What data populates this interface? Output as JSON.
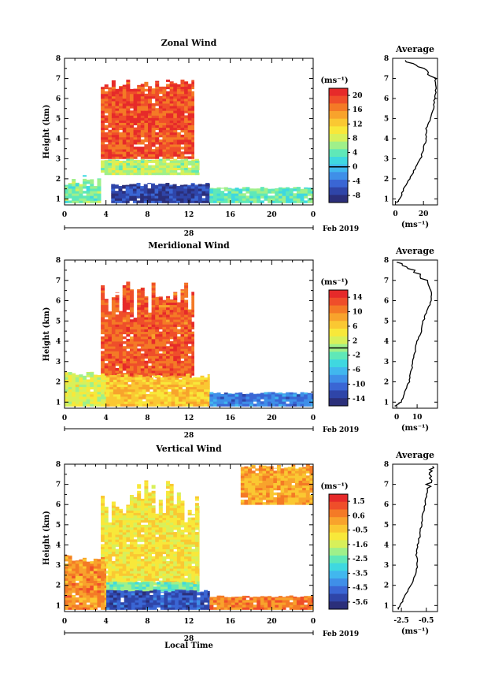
{
  "date_label": "Feb 2019",
  "x_axis_title": "Local Time",
  "panels": [
    {
      "title": "Zonal Wind",
      "ylabel": "Height (km)",
      "unit": "(ms⁻¹)",
      "day_label": "28",
      "avg_title": "Average",
      "avg_unit": "(ms⁻¹)",
      "colorbar_ticks": [
        "20",
        "16",
        "12",
        "8",
        "4",
        "0",
        "-4",
        "-8"
      ],
      "avg_x_ticks": [
        "0",
        "20"
      ]
    },
    {
      "title": "Meridional Wind",
      "ylabel": "Height (km)",
      "unit": "(ms⁻¹)",
      "day_label": "28",
      "avg_title": "Average",
      "avg_unit": "(ms⁻¹)",
      "colorbar_ticks": [
        "14",
        "10",
        "6",
        "2",
        "-2",
        "-6",
        "-10",
        "-14"
      ],
      "avg_x_ticks": [
        "0",
        "10"
      ]
    },
    {
      "title": "Vertical Wind",
      "ylabel": "Height (km)",
      "unit": "(ms⁻¹)",
      "day_label": "28",
      "avg_title": "Average",
      "avg_unit": "(ms⁻¹)",
      "colorbar_ticks": [
        "1.5",
        "0.6",
        "-0.5",
        "-1.6",
        "-2.5",
        "-3.5",
        "-4.5",
        "-5.6"
      ],
      "avg_x_ticks": [
        "-2.5",
        "-0.5"
      ]
    }
  ],
  "chart_data": [
    {
      "type": "heatmap",
      "title": "Zonal Wind",
      "xlabel": "",
      "ylabel": "Height (km)",
      "x_ticks": [
        "0",
        "4",
        "8",
        "12",
        "16",
        "20",
        "0"
      ],
      "y_ticks": [
        "1",
        "2",
        "3",
        "4",
        "5",
        "6",
        "7",
        "8"
      ],
      "xlim": [
        0,
        24
      ],
      "ylim": [
        0.7,
        8
      ],
      "colorbar_range": [
        -8,
        22
      ],
      "regions": [
        {
          "x": [
            0,
            3.5
          ],
          "y": [
            0.8,
            2.2
          ],
          "value": 6
        },
        {
          "x": [
            3.5,
            12.5
          ],
          "y": [
            3.0,
            7.0
          ],
          "value": 20
        },
        {
          "x": [
            3.5,
            13
          ],
          "y": [
            2.2,
            3.0
          ],
          "value": 8
        },
        {
          "x": [
            4.5,
            14
          ],
          "y": [
            0.8,
            1.8
          ],
          "value": -6
        },
        {
          "x": [
            14,
            24
          ],
          "y": [
            0.8,
            1.6
          ],
          "value": 5
        }
      ],
      "average_profile": {
        "x_label": "(ms⁻¹)",
        "x_ticks": [
          "0",
          "20"
        ],
        "xlim": [
          -2,
          30
        ],
        "height": [
          0.8,
          1.0,
          1.5,
          2.0,
          2.5,
          3.0,
          3.5,
          4.0,
          4.5,
          5.0,
          5.5,
          6.0,
          6.5,
          7.0,
          7.5,
          7.9
        ],
        "value": [
          1,
          3,
          6,
          10,
          14,
          18,
          20,
          22,
          22,
          25,
          27,
          28,
          29,
          28,
          20,
          7
        ]
      }
    },
    {
      "type": "heatmap",
      "title": "Meridional Wind",
      "xlabel": "",
      "ylabel": "Height (km)",
      "x_ticks": [
        "0",
        "4",
        "8",
        "12",
        "16",
        "20",
        "0"
      ],
      "y_ticks": [
        "1",
        "2",
        "3",
        "4",
        "5",
        "6",
        "7",
        "8"
      ],
      "xlim": [
        0,
        24
      ],
      "ylim": [
        0.7,
        8
      ],
      "colorbar_range": [
        -16,
        16
      ],
      "regions": [
        {
          "x": [
            3.5,
            12.5
          ],
          "y": [
            2.2,
            7.0
          ],
          "value": 13
        },
        {
          "x": [
            0,
            4
          ],
          "y": [
            0.8,
            2.5
          ],
          "value": 3
        },
        {
          "x": [
            4,
            14
          ],
          "y": [
            0.8,
            2.4
          ],
          "value": 7
        },
        {
          "x": [
            14,
            24
          ],
          "y": [
            0.8,
            1.5
          ],
          "value": -10
        }
      ],
      "average_profile": {
        "x_label": "(ms⁻¹)",
        "x_ticks": [
          "0",
          "10"
        ],
        "xlim": [
          -2,
          20
        ],
        "height": [
          0.8,
          1.0,
          1.5,
          2.0,
          2.5,
          3.0,
          3.5,
          4.0,
          4.5,
          5.0,
          5.5,
          6.0,
          6.5,
          7.0,
          7.5,
          7.9
        ],
        "value": [
          -1,
          2,
          4,
          6,
          7,
          8,
          9,
          10,
          12,
          13,
          15,
          17,
          17,
          14,
          8,
          0
        ]
      }
    },
    {
      "type": "heatmap",
      "title": "Vertical Wind",
      "xlabel": "Local Time",
      "ylabel": "Height (km)",
      "x_ticks": [
        "0",
        "4",
        "8",
        "12",
        "16",
        "20",
        "0"
      ],
      "y_ticks": [
        "1",
        "2",
        "3",
        "4",
        "5",
        "6",
        "7",
        "8"
      ],
      "xlim": [
        0,
        24
      ],
      "ylim": [
        0.7,
        8
      ],
      "colorbar_range": [
        -6,
        2
      ],
      "regions": [
        {
          "x": [
            3.5,
            13
          ],
          "y": [
            2.0,
            7.2
          ],
          "value": -0.8
        },
        {
          "x": [
            4,
            13
          ],
          "y": [
            1.7,
            2.2
          ],
          "value": -2.5
        },
        {
          "x": [
            4,
            14
          ],
          "y": [
            0.8,
            1.8
          ],
          "value": -5.2
        },
        {
          "x": [
            0,
            4
          ],
          "y": [
            0.8,
            3.5
          ],
          "value": 0.5
        },
        {
          "x": [
            14,
            24
          ],
          "y": [
            0.8,
            1.5
          ],
          "value": 0.8
        },
        {
          "x": [
            17,
            24
          ],
          "y": [
            6.0,
            8.0
          ],
          "value": 0.2
        }
      ],
      "average_profile": {
        "x_label": "(ms⁻¹)",
        "x_ticks": [
          "-2.5",
          "-0.5"
        ],
        "xlim": [
          -3.2,
          0.4
        ],
        "height": [
          0.8,
          1.0,
          1.5,
          2.0,
          2.5,
          3.0,
          3.5,
          4.0,
          4.5,
          5.0,
          5.5,
          6.0,
          6.5,
          7.0,
          7.5,
          7.9
        ],
        "value": [
          -2.8,
          -2.6,
          -2.2,
          -1.7,
          -1.4,
          -1.2,
          -1.3,
          -1.2,
          -1.0,
          -0.9,
          -0.8,
          -0.6,
          -0.5,
          -0.3,
          -0.1,
          0.0
        ]
      }
    }
  ]
}
